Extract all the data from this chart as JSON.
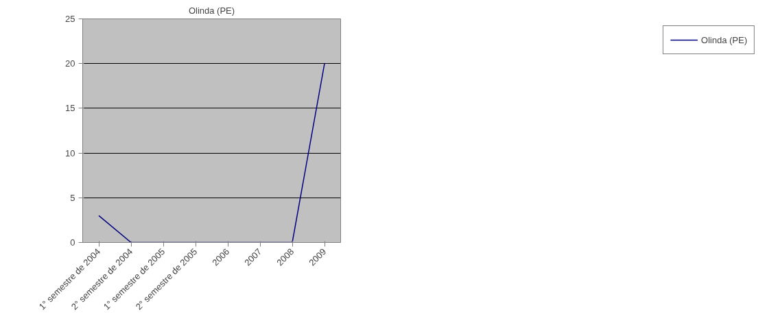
{
  "chart_data": {
    "type": "line",
    "title": "Olinda (PE)",
    "categories": [
      "1° semestre de 2004",
      "2° semestre de 2004",
      "1° semestre de 2005",
      "2° semestre de 2005",
      "2006",
      "2007",
      "2008",
      "2009"
    ],
    "series": [
      {
        "name": "Olinda (PE)",
        "color": "#000080",
        "values": [
          3,
          0,
          0,
          0,
          0,
          0,
          0,
          20
        ]
      }
    ],
    "ylim": [
      0,
      25
    ],
    "yticks": [
      0,
      5,
      10,
      15,
      20,
      25
    ],
    "grid": "y",
    "legend": "right",
    "marker": "none",
    "line_style": "solid"
  }
}
